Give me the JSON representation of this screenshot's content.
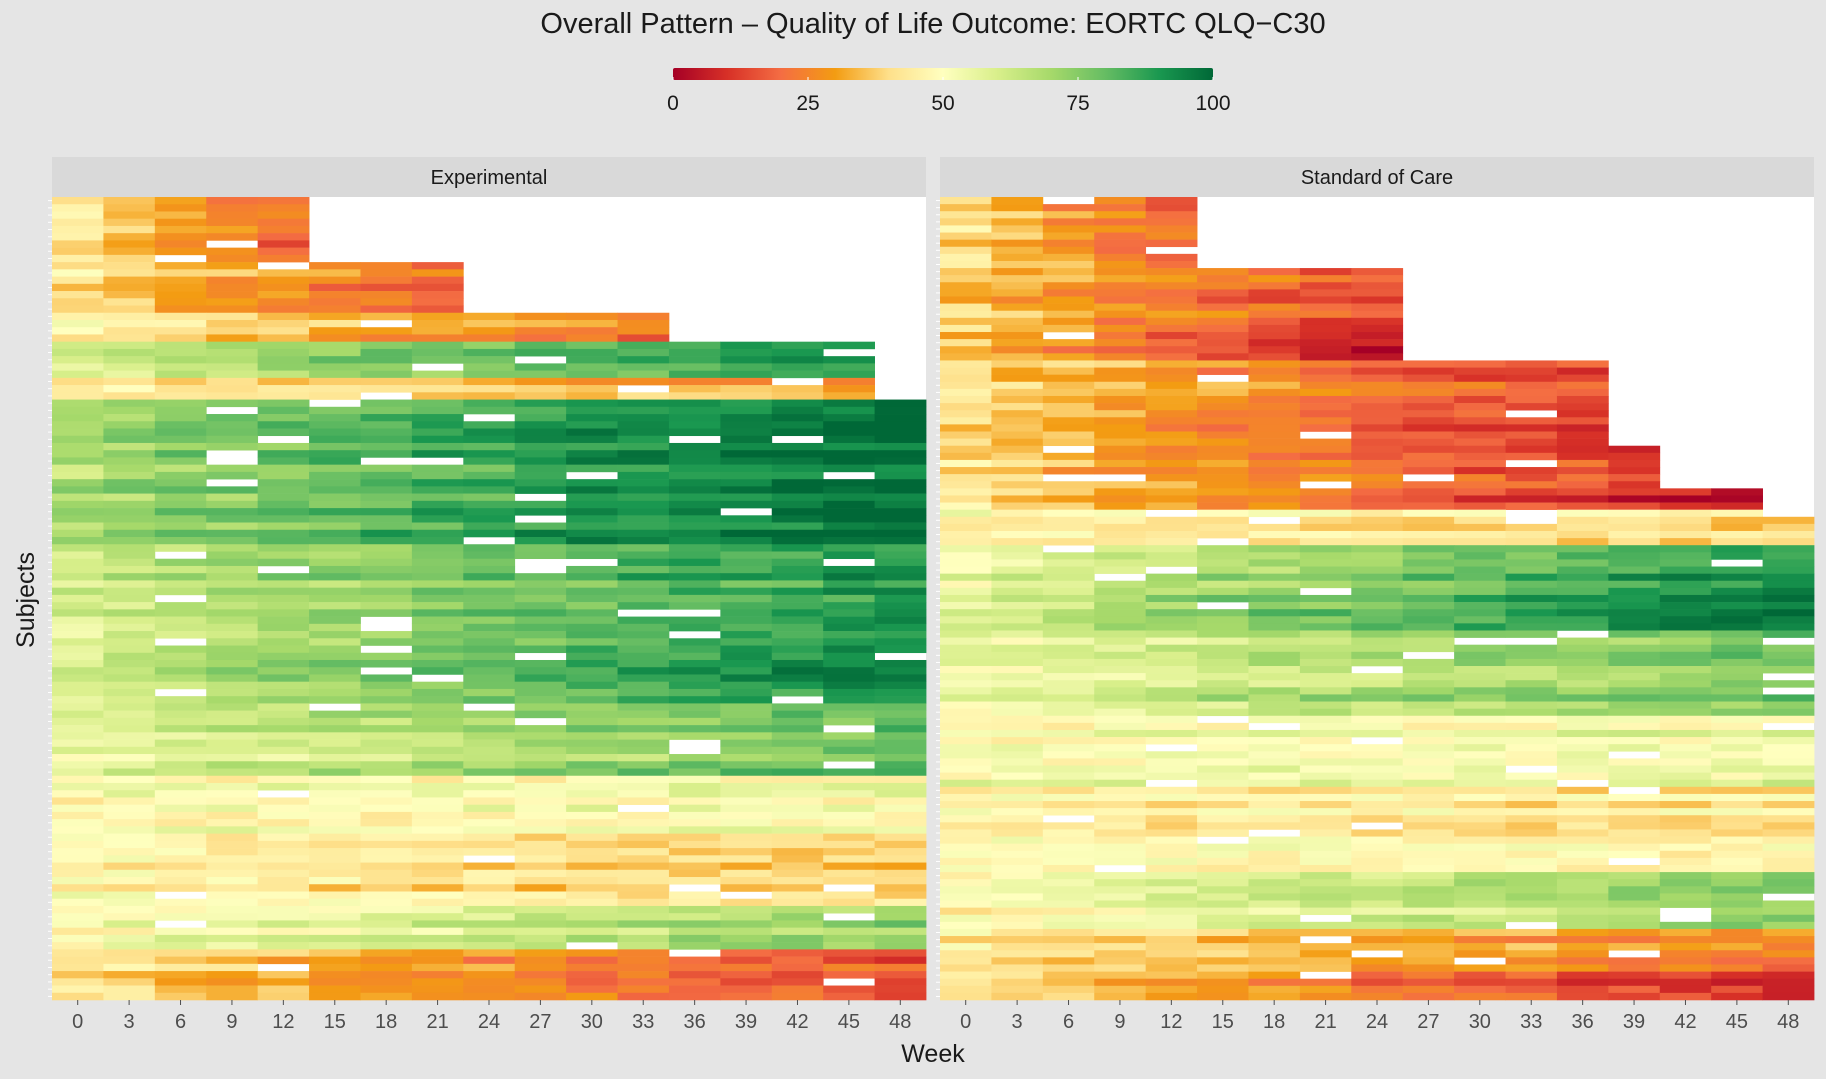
{
  "chart_data": {
    "type": "heatmap",
    "title": "Overall Pattern – Quality of Life Outcome: EORTC QLQ−C30",
    "xlabel": "Week",
    "ylabel": "Subjects",
    "x": [
      0,
      3,
      6,
      9,
      12,
      15,
      18,
      21,
      24,
      27,
      30,
      33,
      36,
      39,
      42,
      45,
      48
    ],
    "x_tick_labels": [
      "0",
      "3",
      "6",
      "9",
      "12",
      "15",
      "18",
      "21",
      "24",
      "27",
      "30",
      "33",
      "36",
      "39",
      "42",
      "45",
      "48"
    ],
    "value_range": [
      0,
      100
    ],
    "legend": {
      "placement": "top",
      "ticks": [
        0,
        25,
        50,
        75,
        100
      ],
      "tick_labels": [
        "0",
        "25",
        "50",
        "75",
        "100"
      ],
      "colors": [
        "#a50026",
        "#d73027",
        "#f46d43",
        "#f39c12",
        "#fee08b",
        "#ffffbf",
        "#d9ef8b",
        "#a6d96a",
        "#66bd63",
        "#1a9850",
        "#006837"
      ]
    },
    "grid": false,
    "missing_color": "#ffffff",
    "panels": [
      {
        "name": "Experimental",
        "groups": [
          {
            "rows": 9,
            "weeks": 5,
            "start": 40,
            "end": 18
          },
          {
            "rows": 7,
            "weeks": 8,
            "start": 42,
            "end": 22
          },
          {
            "rows": 4,
            "weeks": 12,
            "start": 44,
            "end": 22
          },
          {
            "rows": 5,
            "weeks": 16,
            "start": 62,
            "end": 92
          },
          {
            "rows": 3,
            "weeks": 16,
            "start": 42,
            "end": 28
          },
          {
            "rows": 20,
            "weeks": 17,
            "start": 68,
            "end": 99
          },
          {
            "rows": 10,
            "weeks": 17,
            "start": 60,
            "end": 88
          },
          {
            "rows": 12,
            "weeks": 17,
            "start": 58,
            "end": 92
          },
          {
            "rows": 10,
            "weeks": 17,
            "start": 55,
            "end": 78
          },
          {
            "rows": 8,
            "weeks": 17,
            "start": 50,
            "end": 52
          },
          {
            "rows": 10,
            "weeks": 17,
            "start": 48,
            "end": 36
          },
          {
            "rows": 6,
            "weeks": 17,
            "start": 48,
            "end": 72
          },
          {
            "rows": 7,
            "weeks": 17,
            "start": 42,
            "end": 16
          }
        ]
      },
      {
        "name": "Standard of Care",
        "groups": [
          {
            "rows": 10,
            "weeks": 5,
            "start": 40,
            "end": 20
          },
          {
            "rows": 8,
            "weeks": 9,
            "start": 38,
            "end": 16
          },
          {
            "rows": 5,
            "weeks": 9,
            "start": 35,
            "end": 6
          },
          {
            "rows": 12,
            "weeks": 13,
            "start": 42,
            "end": 14
          },
          {
            "rows": 6,
            "weeks": 14,
            "start": 40,
            "end": 12
          },
          {
            "rows": 3,
            "weeks": 16,
            "start": 45,
            "end": 8
          },
          {
            "rows": 5,
            "weeks": 17,
            "start": 48,
            "end": 40
          },
          {
            "rows": 12,
            "weeks": 18,
            "start": 56,
            "end": 96
          },
          {
            "rows": 12,
            "weeks": 18,
            "start": 55,
            "end": 80
          },
          {
            "rows": 10,
            "weeks": 18,
            "start": 52,
            "end": 55
          },
          {
            "rows": 12,
            "weeks": 18,
            "start": 48,
            "end": 44
          },
          {
            "rows": 8,
            "weeks": 18,
            "start": 45,
            "end": 72
          },
          {
            "rows": 6,
            "weeks": 18,
            "start": 44,
            "end": 24
          },
          {
            "rows": 4,
            "weeks": 18,
            "start": 44,
            "end": 8
          }
        ]
      }
    ]
  }
}
